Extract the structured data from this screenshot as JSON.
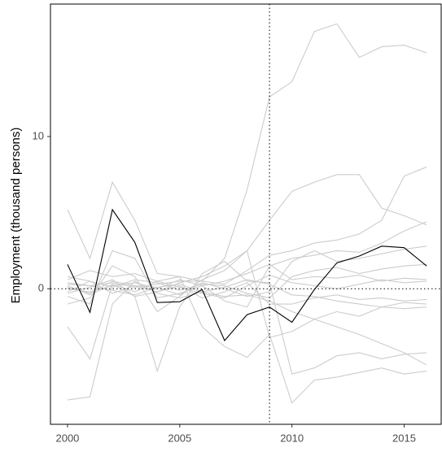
{
  "chart_data": {
    "type": "line",
    "y_label": "Employment (thousand persons)",
    "x": [
      2000,
      2001,
      2002,
      2003,
      2004,
      2005,
      2006,
      2007,
      2008,
      2009,
      2010,
      2011,
      2012,
      2013,
      2014,
      2015,
      2016
    ],
    "xlim": [
      1999.24,
      2016.65
    ],
    "xticks": [
      2000,
      2005,
      2010,
      2015
    ],
    "ylim": [
      -8.9,
      18.7
    ],
    "yticks": [
      0,
      10
    ],
    "vline": 2009,
    "hline": 0,
    "series": [
      {
        "color": "#cccccc",
        "values": [
          0.3,
          0.2,
          0.4,
          0.1,
          0.3,
          0.5,
          0.5,
          2.0,
          6.5,
          12.6,
          13.6,
          16.9,
          17.4,
          15.2,
          15.9,
          16.0,
          15.5
        ]
      },
      {
        "color": "#cccccc",
        "values": [
          0.1,
          -0.3,
          0.5,
          0.2,
          -0.2,
          0.4,
          0.8,
          1.5,
          2.5,
          4.5,
          6.4,
          7.0,
          7.5,
          7.5,
          5.3,
          4.8,
          4.2
        ]
      },
      {
        "color": "#cccccc",
        "values": [
          -7.3,
          -7.1,
          -1.0,
          0.5,
          -0.3,
          -0.6,
          -0.2,
          -0.5,
          -0.4,
          -0.8,
          -1.5,
          -2.0,
          -2.5,
          -3.0,
          -3.6,
          -4.2,
          -5.0
        ]
      },
      {
        "color": "#cccccc",
        "values": [
          5.2,
          2.0,
          7.0,
          4.5,
          1.0,
          0.8,
          0.5,
          0.3,
          1.2,
          2.2,
          2.5,
          3.0,
          3.2,
          3.6,
          4.5,
          7.4,
          8.0
        ]
      },
      {
        "color": "#cccccc",
        "values": [
          -2.5,
          -4.6,
          0.3,
          -0.5,
          -5.4,
          -1.2,
          1.0,
          1.8,
          0.5,
          0.4,
          -5.6,
          -5.2,
          -4.4,
          -4.2,
          -4.6,
          -4.3,
          -4.2
        ]
      },
      {
        "color": "#cccccc",
        "values": [
          0.6,
          1.2,
          0.8,
          1.0,
          0.5,
          0.8,
          -2.5,
          -3.8,
          -4.5,
          -3.0,
          -7.5,
          -6.0,
          -5.8,
          -5.5,
          -5.2,
          -5.6,
          -5.4
        ]
      },
      {
        "color": "#cccccc",
        "values": [
          -0.5,
          -1.0,
          2.5,
          2.0,
          -0.6,
          -0.3,
          0.2,
          -0.8,
          -1.2,
          1.5,
          2.0,
          2.2,
          2.5,
          2.4,
          3.0,
          3.8,
          4.4
        ]
      },
      {
        "color": "#cccccc",
        "values": [
          0.4,
          0.2,
          -0.1,
          -0.4,
          0.1,
          0.3,
          -0.2,
          0.1,
          0.6,
          0.3,
          -0.4,
          -0.5,
          -0.8,
          -1.0,
          -1.2,
          -1.3,
          -1.2
        ]
      },
      {
        "color": "#cccccc",
        "values": [
          -0.2,
          0.5,
          0.1,
          0.6,
          0.4,
          -0.1,
          0.3,
          0.2,
          -0.3,
          -0.6,
          0.8,
          1.2,
          1.4,
          1.0,
          1.3,
          1.5,
          1.6
        ]
      },
      {
        "color": "#cccccc",
        "values": [
          0.2,
          -0.4,
          0.3,
          -0.2,
          0.5,
          0.1,
          -0.3,
          -0.6,
          0.2,
          0.9,
          0.4,
          0.2,
          0.0,
          0.3,
          0.6,
          0.4,
          0.5
        ]
      },
      {
        "color": "#cccccc",
        "values": [
          -1.0,
          -0.6,
          1.5,
          0.8,
          -1.5,
          -0.5,
          0.6,
          1.2,
          2.5,
          -3.2,
          -2.8,
          -2.0,
          -1.5,
          -1.8,
          -1.2,
          -0.9,
          -1.0
        ]
      },
      {
        "color": "#cccccc",
        "values": [
          0.8,
          0.5,
          -0.3,
          0.2,
          0.1,
          -0.4,
          0.4,
          0.0,
          -0.5,
          -0.2,
          1.8,
          2.5,
          1.8,
          2.0,
          2.3,
          2.6,
          2.8
        ]
      },
      {
        "color": "#cccccc",
        "values": [
          -0.3,
          0.1,
          0.6,
          -0.5,
          -0.2,
          0.2,
          -0.6,
          -0.2,
          0.4,
          -1.0,
          -1.0,
          -0.6,
          -0.4,
          -0.7,
          -0.6,
          -0.8,
          -0.7
        ]
      },
      {
        "color": "#cccccc",
        "values": [
          0.0,
          -0.2,
          0.2,
          0.4,
          0.0,
          0.6,
          0.2,
          0.5,
          1.0,
          1.6,
          0.6,
          0.8,
          0.7,
          0.9,
          0.5,
          0.7,
          0.6
        ]
      },
      {
        "color": "#000000",
        "values": [
          1.6,
          -1.55,
          5.2,
          3.05,
          -0.9,
          -0.85,
          -0.05,
          -3.4,
          -1.7,
          -1.2,
          -2.2,
          -0.05,
          1.7,
          2.15,
          2.8,
          2.7,
          1.5
        ]
      }
    ]
  }
}
